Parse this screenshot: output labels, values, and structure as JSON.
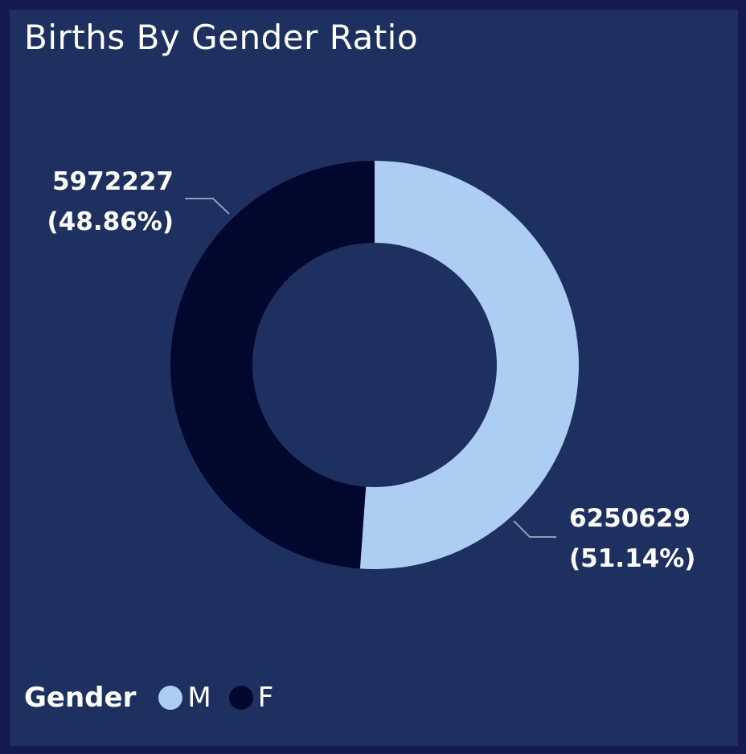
{
  "title": "Births By Gender Ratio",
  "chart_data": {
    "type": "pie",
    "title": "Births By Gender Ratio",
    "donut": true,
    "legend_title": "Gender",
    "legend_position": "bottom-left",
    "categories": [
      "M",
      "F"
    ],
    "values": [
      6250629,
      5972227
    ],
    "labels": [
      {
        "value": "6250629",
        "percent": "(51.14%)"
      },
      {
        "value": "5972227",
        "percent": "(48.86%)"
      }
    ],
    "colors": [
      "#aecdf2",
      "#02072e"
    ]
  }
}
